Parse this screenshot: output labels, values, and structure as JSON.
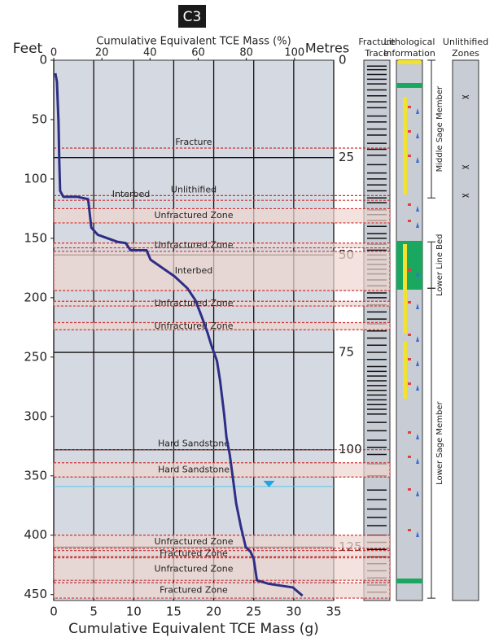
{
  "title": "C3",
  "chart_data": {
    "type": "line",
    "x_label": "Cumulative Equivalent TCE Mass (g)",
    "x2_label": "Cumulative Equivalent TCE Mass (%)",
    "y_label": "Feet",
    "y2_label": "Metres",
    "xlim": [
      0,
      35
    ],
    "xticks": [
      0,
      5,
      10,
      15,
      20,
      25,
      30,
      35
    ],
    "x2lim": [
      0,
      116.3
    ],
    "x2ticks": [
      0,
      20,
      40,
      60,
      80,
      100
    ],
    "ylim": [
      0,
      455
    ],
    "yticks": [
      0,
      50,
      100,
      150,
      200,
      250,
      300,
      350,
      400,
      450
    ],
    "y2lim": [
      0,
      138.7
    ],
    "y2ticks": [
      0,
      25,
      50,
      75,
      100,
      125
    ],
    "invert_y": true,
    "grid": true,
    "series": [
      {
        "color": "#2e2e86",
        "x": [
          0.2,
          0.4,
          0.6,
          0.7,
          0.8,
          1.2,
          2.9,
          4.3,
          4.7,
          5.5,
          8.0,
          9.0,
          9.6,
          11.6,
          12.1,
          13.6,
          15.1,
          16.7,
          17.7,
          18.5,
          19.2,
          19.7,
          20.4,
          20.8,
          21.3,
          21.6,
          22.0,
          22.4,
          22.8,
          23.4,
          24.0,
          24.6,
          25.0,
          25.4,
          26.9,
          29.9,
          31.1
        ],
        "values": [
          11,
          18,
          52,
          86,
          110,
          115,
          115,
          117,
          141,
          147,
          153,
          154,
          160,
          160,
          168,
          175,
          182,
          192,
          202,
          216,
          229,
          240,
          253,
          270,
          298,
          318,
          332,
          352,
          373,
          393,
          410,
          414,
          420,
          438,
          441,
          444,
          451
        ]
      }
    ],
    "zones": [
      {
        "label": "Fracture",
        "top": 74,
        "bottom": 74
      },
      {
        "label": "Unlithified",
        "top": 114,
        "bottom": 114
      },
      {
        "label": "Interbed",
        "top": 118,
        "bottom": 118
      },
      {
        "label": "Unfractured Zone",
        "top": 125,
        "bottom": 137
      },
      {
        "label": "Unfractured Zone",
        "top": 154,
        "bottom": 158
      },
      {
        "label": "Interbed",
        "top": 161,
        "bottom": 194
      },
      {
        "label": "Unfractured Zone",
        "top": 203,
        "bottom": 207
      },
      {
        "label": "Unfractured Zone",
        "top": 221,
        "bottom": 227
      },
      {
        "label": "Hard Sandstone",
        "top": 328,
        "bottom": 328
      },
      {
        "label": "Hard Sandstone",
        "top": 339,
        "bottom": 351
      },
      {
        "label": "Unfractured Zone",
        "top": 400,
        "bottom": 411
      },
      {
        "label": "Fractured Zone",
        "top": 413,
        "bottom": 418
      },
      {
        "label": "Unfractured Zone",
        "top": 419,
        "bottom": 438
      },
      {
        "label": "Fractured Zone",
        "top": 440,
        "bottom": 453
      }
    ],
    "water_table": 359
  },
  "panels": {
    "fracture_trace": {
      "title": [
        "Fracture",
        "Trace"
      ],
      "depths": [
        5,
        8,
        12,
        16,
        20,
        25,
        30,
        35,
        40,
        47,
        52,
        58,
        63,
        70,
        75,
        80,
        88,
        95,
        100,
        105,
        110,
        116,
        120,
        126,
        130,
        135,
        140,
        146,
        150,
        155,
        160,
        164,
        168,
        172,
        176,
        180,
        185,
        190,
        196,
        200,
        206,
        212,
        218,
        222,
        228,
        234,
        240,
        246,
        252,
        258,
        262,
        266,
        270,
        274,
        278,
        282,
        286,
        290,
        294,
        298,
        305,
        312,
        320,
        326,
        332,
        340,
        350,
        362,
        370,
        378,
        385,
        392,
        400,
        406,
        412,
        418,
        424,
        430,
        436,
        442,
        448
      ]
    },
    "lithology": {
      "title": [
        "Lithological",
        "Information"
      ]
    },
    "unlithified": {
      "title": [
        "Unlithified",
        "Zones"
      ],
      "depths": [
        31,
        90,
        114
      ]
    },
    "units": [
      {
        "label": "Middle Sage Member",
        "top": 0,
        "bottom": 116
      },
      {
        "label": "Lower Line Bed",
        "top": 153,
        "bottom": 192
      },
      {
        "label": "Lower Sage Member",
        "top": 192,
        "bottom": 453
      }
    ]
  }
}
